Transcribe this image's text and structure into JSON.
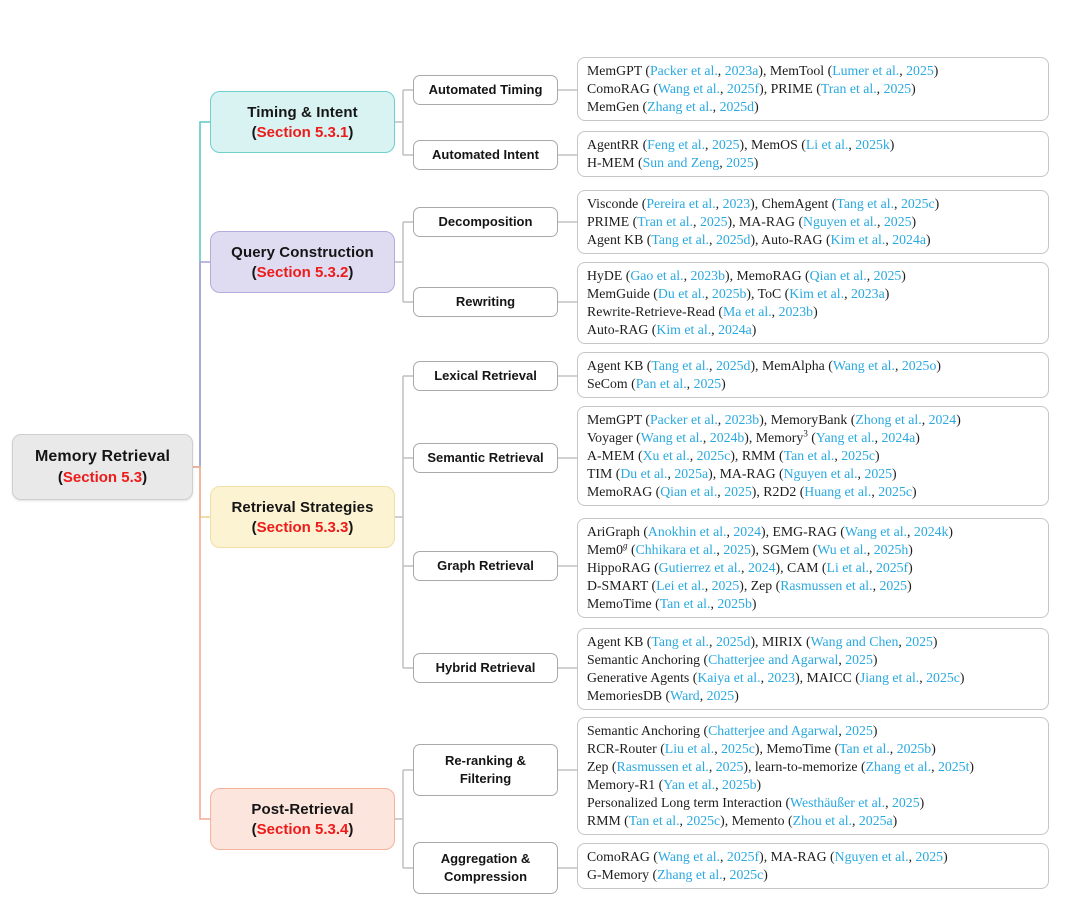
{
  "colors": {
    "citation": "#2aa9e0",
    "section_red": "#ee1b1b",
    "root_bg": "#e9e9e9",
    "connector_gray": "#c3c3c3",
    "cyan_bg": "#d9f2f2",
    "cyan_border": "#6fcfcf",
    "cyan_line": "#5fc8c8",
    "purple_bg": "#dfdcf2",
    "purple_border": "#b4abdf",
    "purple_line": "#a89fd6",
    "yellow_bg": "#fcf3d2",
    "yellow_border": "#f0dfa6",
    "yellow_line": "#ead28e",
    "salmon_bg": "#fce5dc",
    "salmon_border": "#f5b39d",
    "salmon_line": "#f3ac94"
  },
  "punctuation": {
    "open": "(",
    "close": ")"
  },
  "root": {
    "title": "Memory Retrieval",
    "section": "Section 5.3"
  },
  "branches": [
    {
      "title": "Timing & Intent",
      "section": "Section 5.3.1",
      "theme": "cyan",
      "children": [
        {
          "label": "Automated Timing",
          "papers_lines": [
            "MemGPT ([[Packer et al.]], [[2023a]]), MemTool ([[Lumer et al.]], [[2025]])",
            "ComoRAG ([[Wang et al.]], [[2025f]]), PRIME ([[Tran et al.]], [[2025]])",
            "MemGen ([[Zhang et al.]], [[2025d]])"
          ]
        },
        {
          "label": "Automated Intent",
          "papers_lines": [
            "AgentRR ([[Feng et al.]], [[2025]]), MemOS ([[Li et al.]], [[2025k]])",
            "H-MEM ([[Sun and Zeng]], [[2025]])"
          ]
        }
      ]
    },
    {
      "title": "Query Construction",
      "section": "Section 5.3.2",
      "theme": "purple",
      "children": [
        {
          "label": "Decomposition",
          "papers_lines": [
            "Visconde ([[Pereira et al.]], [[2023]]), ChemAgent ([[Tang et al.]], [[2025c]])",
            "PRIME ([[Tran et al.]], [[2025]]), MA-RAG ([[Nguyen et al.]], [[2025]])",
            "Agent KB ([[Tang et al.]], [[2025d]]), Auto-RAG ([[Kim et al.]], [[2024a]])"
          ]
        },
        {
          "label": "Rewriting",
          "papers_lines": [
            "HyDE ([[Gao et al.]], [[2023b]]), MemoRAG ([[Qian et al.]], [[2025]])",
            "MemGuide ([[Du et al.]], [[2025b]]), ToC ([[Kim et al.]], [[2023a]])",
            "Rewrite-Retrieve-Read ([[Ma et al.]], [[2023b]])",
            "Auto-RAG ([[Kim et al.]], [[2024a]])"
          ]
        }
      ]
    },
    {
      "title": "Retrieval Strategies",
      "section": "Section 5.3.3",
      "theme": "yellow",
      "children": [
        {
          "label": "Lexical Retrieval",
          "papers_lines": [
            "Agent KB ([[Tang et al.]], [[2025d]]), MemAlpha ([[Wang et al.]], [[2025o]])",
            "SeCom ([[Pan et al.]], [[2025]])"
          ]
        },
        {
          "label": "Semantic Retrieval",
          "papers_lines": [
            "MemGPT ([[Packer et al.]], [[2023b]]), MemoryBank ([[Zhong et al.]], [[2024]])",
            "Voyager ([[Wang et al.]], [[2024b]]), Memory^{3} ([[Yang et al.]], [[2024a]])",
            "A-MEM ([[Xu et al.]], [[2025c]]), RMM ([[Tan et al.]], [[2025c]])",
            "TIM ([[Du et al.]], [[2025a]]), MA-RAG ([[Nguyen et al.]], [[2025]])",
            "MemoRAG ([[Qian et al.]], [[2025]]), R2D2 ([[Huang et al.]], [[2025c]])"
          ]
        },
        {
          "label": "Graph Retrieval",
          "papers_lines": [
            "AriGraph ([[Anokhin et al.]], [[2024]]), EMG-RAG ([[Wang et al.]], [[2024k]])",
            "Mem0^{g} ([[Chhikara et al.]], [[2025]]), SGMem ([[Wu et al.]], [[2025h]])",
            "HippoRAG ([[Gutierrez et al.]], [[2024]]), CAM ([[Li et al.]], [[2025f]])",
            "D-SMART ([[Lei et al.]], [[2025]]), Zep ([[Rasmussen et al.]], [[2025]])",
            "MemoTime ([[Tan et al.]], [[2025b]])"
          ]
        },
        {
          "label": "Hybrid Retrieval",
          "papers_lines": [
            "Agent KB ([[Tang et al.]], [[2025d]]), MIRIX ([[Wang and Chen]], [[2025]])",
            "Semantic Anchoring ([[Chatterjee and Agarwal]], [[2025]])",
            "Generative Agents ([[Kaiya et al.]], [[2023]]), MAICC ([[Jiang et al.]], [[2025c]])",
            "MemoriesDB ([[Ward]], [[2025]])"
          ]
        }
      ]
    },
    {
      "title": "Post-Retrieval",
      "section": "Section 5.3.4",
      "theme": "salmon",
      "children": [
        {
          "label": "Re-ranking & Filtering",
          "papers_lines": [
            "Semantic Anchoring ([[Chatterjee and Agarwal]], [[2025]])",
            "RCR-Router ([[Liu et al.]], [[2025c]]), MemoTime ([[Tan et al.]], [[2025b]])",
            "Zep ([[Rasmussen et al.]], [[2025]]), learn-to-memorize ([[Zhang et al.]], [[2025t]])",
            "Memory-R1 ([[Yan et al.]], [[2025b]])",
            "Personalized Long term Interaction ([[Westhäußer et al.]], [[2025]])",
            "RMM ([[Tan et al.]], [[2025c]]), Memento ([[Zhou et al.]], [[2025a]])"
          ]
        },
        {
          "label": "Aggregation & Compression",
          "papers_lines": [
            "ComoRAG ([[Wang et al.]], [[2025f]]), MA-RAG ([[Nguyen et al.]], [[2025]])",
            "G-Memory ([[Zhang et al.]], [[2025c]])"
          ]
        }
      ]
    }
  ]
}
